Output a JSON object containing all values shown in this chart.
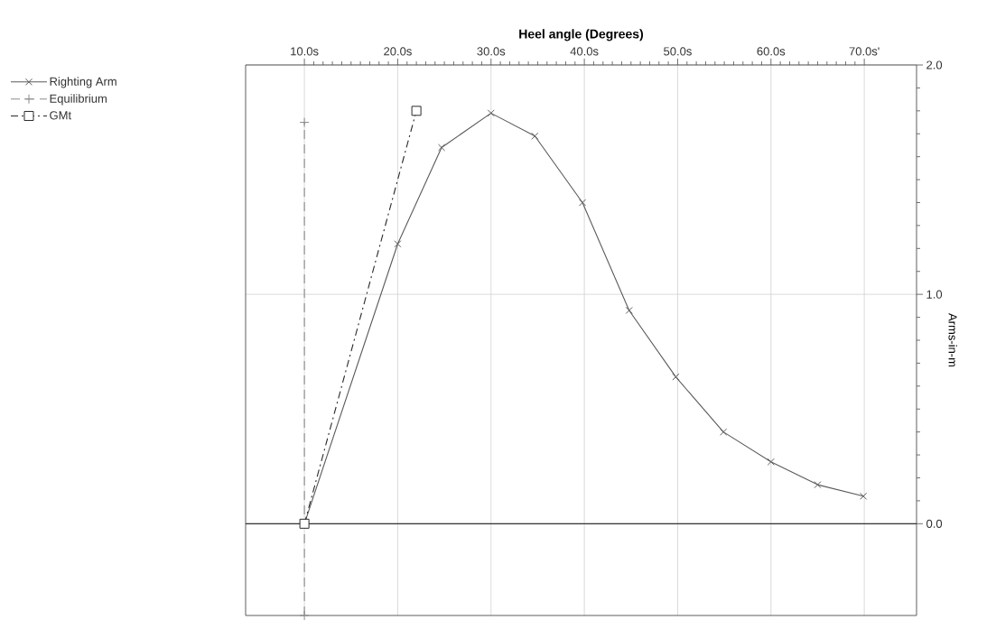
{
  "chart_data": {
    "type": "line",
    "xlabel": "Heel angle (Degrees)",
    "ylabel": "Arms-in-m",
    "xlim": [
      3.7,
      75.6
    ],
    "ylim": [
      -0.4,
      2
    ],
    "xticks": [
      {
        "value": 10,
        "label": "10.0s"
      },
      {
        "value": 20,
        "label": "20.0s"
      },
      {
        "value": 30,
        "label": "30.0s"
      },
      {
        "value": 40,
        "label": "40.0s"
      },
      {
        "value": 50,
        "label": "50.0s"
      },
      {
        "value": 60,
        "label": "60.0s"
      },
      {
        "value": 70,
        "label": "70.0s'"
      }
    ],
    "yticks": [
      {
        "value": 0,
        "label": "0.0"
      },
      {
        "value": 1,
        "label": "1.0"
      },
      {
        "value": 2,
        "label": "2.0"
      }
    ],
    "grid": true,
    "legend": "top left",
    "ref_lines": [
      {
        "axis": "y",
        "value": 0,
        "color": "#333333"
      }
    ],
    "series": [
      {
        "name": "Righting Arm",
        "color": "#5a5a5a",
        "marker": "cross",
        "line_style": "solid",
        "x": [
          10,
          20,
          24.7,
          30,
          34.7,
          39.8,
          44.8,
          49.8,
          54.9,
          60,
          65,
          69.9
        ],
        "values": [
          0,
          1.22,
          1.64,
          1.79,
          1.69,
          1.4,
          0.93,
          0.64,
          0.4,
          0.27,
          0.17,
          0.12
        ]
      },
      {
        "name": "Equilibrium",
        "color": "#8c8c8c",
        "marker": "plus",
        "line_style": "dashed",
        "x": [
          10,
          10
        ],
        "values": [
          -0.4,
          1.75
        ]
      },
      {
        "name": "GMt",
        "color": "#2a2a2a",
        "marker": "square",
        "line_style": "dashdot",
        "x": [
          10,
          22
        ],
        "values": [
          0,
          1.8
        ]
      }
    ]
  }
}
